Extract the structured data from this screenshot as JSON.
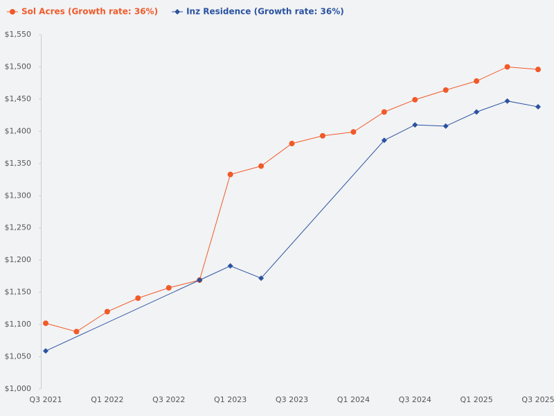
{
  "chart_data": {
    "type": "line",
    "categories": [
      "Q3 2021",
      null,
      "Q1 2022",
      null,
      "Q3 2022",
      null,
      "Q1 2023",
      null,
      "Q3 2023",
      null,
      "Q1 2024",
      null,
      "Q3 2024",
      null,
      "Q1 2025",
      null,
      "Q3 2025"
    ],
    "series": [
      {
        "name": "Sol Acres (Growth rate: 36%)",
        "color": "#f05a28",
        "marker": "circle",
        "values": [
          1102,
          1089,
          1120,
          1141,
          1157,
          1169,
          1333,
          1346,
          1381,
          1393,
          1399,
          1430,
          1449,
          1464,
          1478,
          1500,
          1496
        ]
      },
      {
        "name": "Inz Residence (Growth rate: 36%)",
        "color": "#2a52a0",
        "marker": "diamond",
        "values": [
          1059,
          null,
          null,
          null,
          null,
          1169,
          1191,
          1172,
          null,
          null,
          null,
          1386,
          1410,
          1408,
          1430,
          1447,
          1438
        ]
      }
    ],
    "span_gaps": true,
    "ylim": [
      1000,
      1550
    ],
    "yticks": [
      {
        "value": 1000,
        "label": "$1,000"
      },
      {
        "value": 1050,
        "label": "$1,050"
      },
      {
        "value": 1100,
        "label": "$1,100"
      },
      {
        "value": 1150,
        "label": "$1,150"
      },
      {
        "value": 1200,
        "label": "$1,200"
      },
      {
        "value": 1250,
        "label": "$1,250"
      },
      {
        "value": 1300,
        "label": "$1,300"
      },
      {
        "value": 1350,
        "label": "$1,350"
      },
      {
        "value": 1400,
        "label": "$1,400"
      },
      {
        "value": 1450,
        "label": "$1,450"
      },
      {
        "value": 1500,
        "label": "$1,500"
      },
      {
        "value": 1550,
        "label": "$1,550"
      }
    ],
    "grid": false,
    "legend": "top-left"
  }
}
